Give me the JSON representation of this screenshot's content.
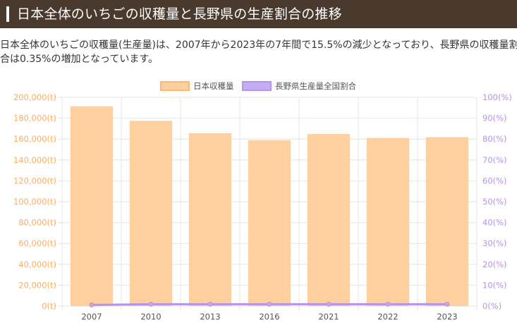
{
  "header": {
    "title": "日本全体のいちごの収穫量と長野県の生産割合の推移"
  },
  "summary": {
    "line1": "日本全体のいちごの収穫量(生産量)は、2007年から2023年の7年間で15.5%の減少となっており、長野県の収穫量割",
    "line2": "合は0.35%の増加となっています。"
  },
  "colors": {
    "header_bg": "#4a3a2e",
    "bar_fill": "#ffd09e",
    "bar_accent": "#ffb574",
    "line": "#b493f0",
    "left_axis": "#ffad60",
    "right_axis": "#b493f0"
  },
  "chart_data": {
    "type": "bar",
    "categories": [
      "2007",
      "2010",
      "2013",
      "2016",
      "2021",
      "2022",
      "2023"
    ],
    "series": [
      {
        "name": "日本収穫量",
        "type": "bar",
        "axis": "left",
        "values": [
          191400,
          177500,
          165600,
          159000,
          164800,
          161100,
          161800
        ]
      },
      {
        "name": "長野県生産量全国割合",
        "type": "line",
        "axis": "right",
        "values": [
          0.55,
          0.9,
          0.9,
          0.9,
          0.9,
          0.9,
          0.9
        ]
      }
    ],
    "left_axis": {
      "ylim": [
        0,
        200000
      ],
      "tick_labels": [
        "0(t)",
        "20,000(t)",
        "40,000(t)",
        "60,000(t)",
        "80,000(t)",
        "100,000(t)",
        "120,000(t)",
        "140,000(t)",
        "160,000(t)",
        "180,000(t)",
        "200,000(t)"
      ]
    },
    "right_axis": {
      "ylim": [
        0,
        100
      ],
      "tick_labels": [
        "0(%)",
        "10(%)",
        "20(%)",
        "30(%)",
        "40(%)",
        "50(%)",
        "60(%)",
        "70(%)",
        "80(%)",
        "90(%)",
        "100(%)"
      ]
    },
    "grid": true,
    "legend": "top-center"
  }
}
